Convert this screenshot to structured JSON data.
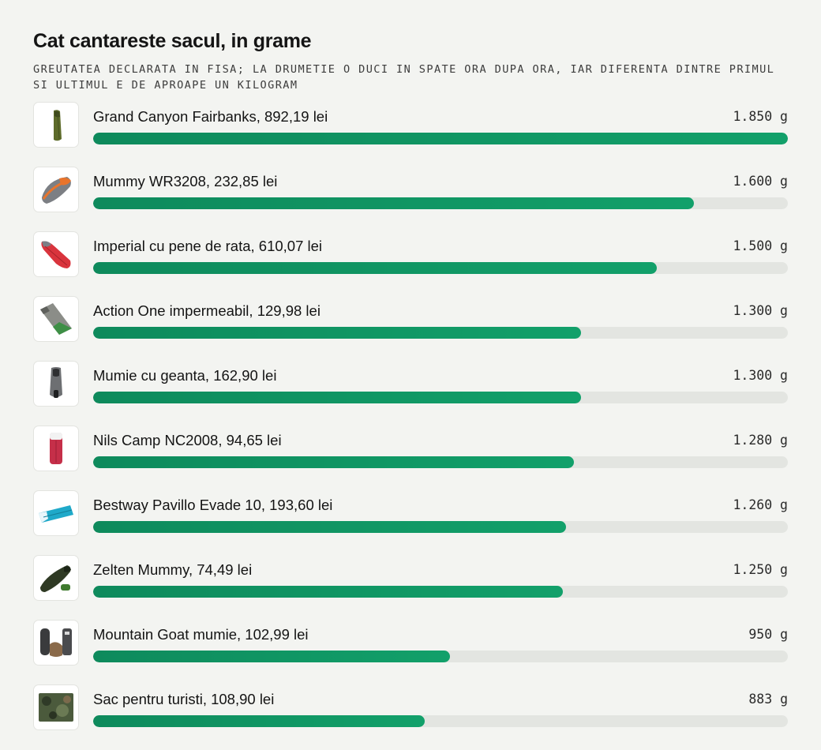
{
  "title": "Cat cantareste sacul, in grame",
  "subtitle": "GREUTATEA DECLARATA IN FISA; LA DRUMETIE O DUCI IN SPATE ORA DUPA ORA, IAR DIFERENTA DINTRE PRIMUL SI ULTIMUL E DE APROAPE UN KILOGRAM",
  "colors": {
    "bar": "#0e8a5c",
    "track": "#e3e5e1",
    "background": "#f3f4f1"
  },
  "items": [
    {
      "label": "Grand Canyon Fairbanks, 892,19 lei",
      "weight_text": "1.850 g",
      "icon": "olive-mummy-bag-icon"
    },
    {
      "label": "Mummy WR3208, 232,85 lei",
      "weight_text": "1.600 g",
      "icon": "orange-grey-mummy-bag-icon"
    },
    {
      "label": "Imperial cu pene de rata, 610,07 lei",
      "weight_text": "1.500 g",
      "icon": "red-mummy-bag-icon"
    },
    {
      "label": "Action One impermeabil, 129,98 lei",
      "weight_text": "1.300 g",
      "icon": "green-grey-rectangular-bag-icon"
    },
    {
      "label": "Mumie cu geanta, 162,90 lei",
      "weight_text": "1.300 g",
      "icon": "grey-mummy-bag-with-pouch-icon"
    },
    {
      "label": "Nils Camp NC2008, 94,65 lei",
      "weight_text": "1.280 g",
      "icon": "red-rectangular-bag-icon"
    },
    {
      "label": "Bestway Pavillo Evade 10, 193,60 lei",
      "weight_text": "1.260 g",
      "icon": "blue-flat-bag-icon"
    },
    {
      "label": "Zelten Mummy, 74,49 lei",
      "weight_text": "1.250 g",
      "icon": "dark-green-mummy-bag-icon"
    },
    {
      "label": "Mountain Goat mumie, 102,99 lei",
      "weight_text": "950 g",
      "icon": "grey-mummy-bag-set-icon"
    },
    {
      "label": "Sac pentru turisti, 108,90 lei",
      "weight_text": "883 g",
      "icon": "camo-bag-icon"
    }
  ],
  "chart_data": {
    "type": "bar",
    "orientation": "horizontal",
    "title": "Cat cantareste sacul, in grame",
    "subtitle": "GREUTATEA DECLARATA IN FISA; LA DRUMETIE O DUCI IN SPATE ORA DUPA ORA, IAR DIFERENTA DINTRE PRIMUL SI ULTIMUL E DE APROAPE UN KILOGRAM",
    "categories": [
      "Grand Canyon Fairbanks, 892,19 lei",
      "Mummy WR3208, 232,85 lei",
      "Imperial cu pene de rata, 610,07 lei",
      "Action One impermeabil, 129,98 lei",
      "Mumie cu geanta, 162,90 lei",
      "Nils Camp NC2008, 94,65 lei",
      "Bestway Pavillo Evade 10, 193,60 lei",
      "Zelten Mummy, 74,49 lei",
      "Mountain Goat mumie, 102,99 lei",
      "Sac pentru turisti, 108,90 lei"
    ],
    "values": [
      1850,
      1600,
      1500,
      1300,
      1300,
      1280,
      1260,
      1250,
      950,
      883
    ],
    "unit": "g",
    "xlim": [
      0,
      1850
    ],
    "grid": false,
    "legend": "none"
  }
}
